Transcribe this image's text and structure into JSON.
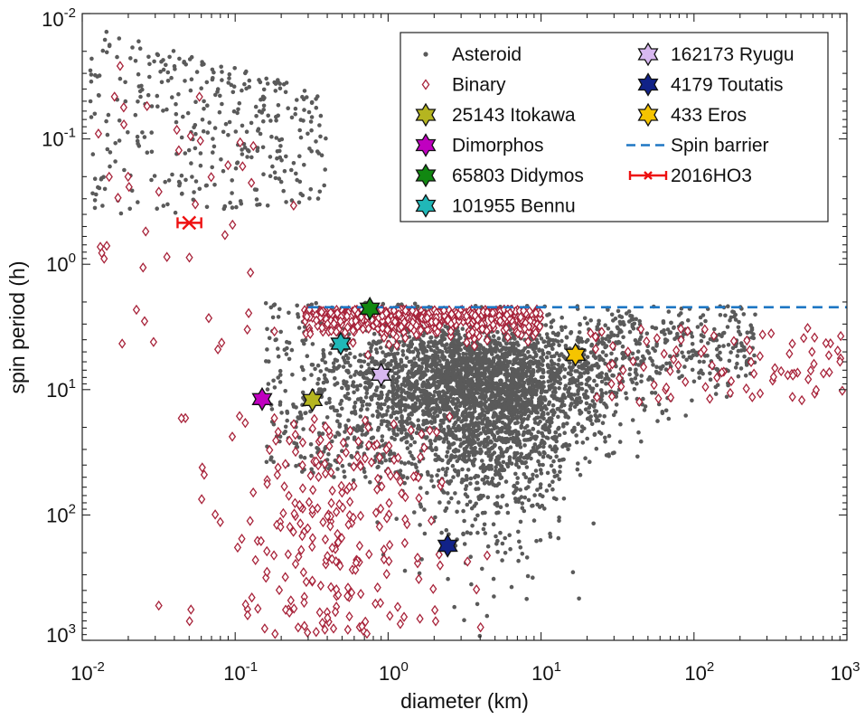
{
  "chart_data": {
    "type": "scatter",
    "xlabel": "diameter (km)",
    "ylabel": "spin period (h)",
    "xscale": "log",
    "yscale": "log",
    "xlim": [
      0.01,
      1000
    ],
    "ylim": [
      0.01,
      1000
    ],
    "y_axis_reversed": true,
    "grid": false,
    "legend_position": "top-right",
    "xticks": [
      {
        "value": 0.01,
        "base": "10",
        "exp": "-2"
      },
      {
        "value": 0.1,
        "base": "10",
        "exp": "-1"
      },
      {
        "value": 1,
        "base": "10",
        "exp": "0"
      },
      {
        "value": 10,
        "base": "10",
        "exp": "1"
      },
      {
        "value": 100,
        "base": "10",
        "exp": "2"
      },
      {
        "value": 1000,
        "base": "10",
        "exp": "3"
      }
    ],
    "yticks": [
      {
        "value": 0.01,
        "base": "10",
        "exp": "-2"
      },
      {
        "value": 0.1,
        "base": "10",
        "exp": "-1"
      },
      {
        "value": 1,
        "base": "10",
        "exp": "0"
      },
      {
        "value": 10,
        "base": "10",
        "exp": "1"
      },
      {
        "value": 100,
        "base": "10",
        "exp": "2"
      },
      {
        "value": 1000,
        "base": "10",
        "exp": "3"
      }
    ],
    "series": [
      {
        "name": "Asteroid",
        "marker": "dot",
        "color": "#5a5a5a",
        "approx_count": 4600
      },
      {
        "name": "Binary",
        "marker": "diamond-open",
        "color": "#a8233a",
        "approx_count": 900
      },
      {
        "name": "25143 Itokawa",
        "marker": "hexagram",
        "color": "#b5b520",
        "x": 0.32,
        "y": 12.1
      },
      {
        "name": "Dimorphos",
        "marker": "hexagram",
        "color": "#c000c0",
        "x": 0.15,
        "y": 11.9
      },
      {
        "name": "65803 Didymos",
        "marker": "hexagram",
        "color": "#118811",
        "x": 0.76,
        "y": 2.26
      },
      {
        "name": "101955 Bennu",
        "marker": "hexagram",
        "color": "#20b8b8",
        "x": 0.49,
        "y": 4.3
      },
      {
        "name": "162173 Ryugu",
        "marker": "hexagram",
        "color": "#d8b8f0",
        "x": 0.9,
        "y": 7.6
      },
      {
        "name": "4179 Toutatis",
        "marker": "hexagram",
        "color": "#112288",
        "x": 2.45,
        "y": 176
      },
      {
        "name": "433 Eros",
        "marker": "hexagram",
        "color": "#f5c400",
        "x": 16.8,
        "y": 5.27
      },
      {
        "name": "Spin barrier",
        "marker": "dashed-line",
        "color": "#1f77c4",
        "x": [
          0.3,
          1000
        ],
        "y": 2.2
      },
      {
        "name": "2016HO3",
        "marker": "x-errorbar",
        "color": "#ee1111",
        "x": 0.05,
        "xerr": [
          0.042,
          0.06
        ],
        "y": 0.467
      }
    ]
  }
}
